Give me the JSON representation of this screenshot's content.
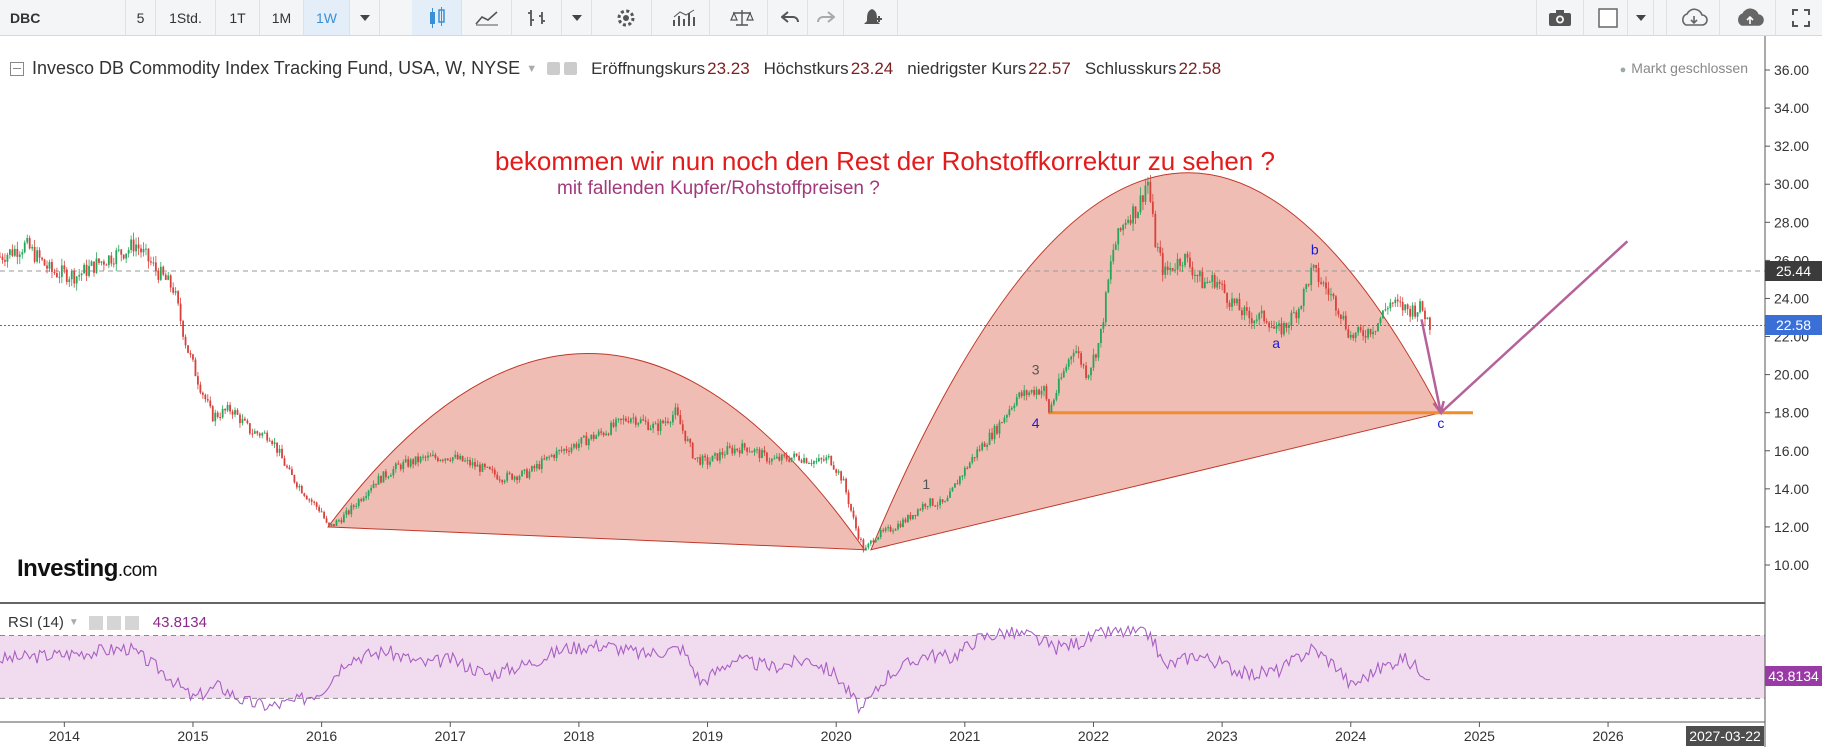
{
  "toolbar": {
    "symbol": "DBC",
    "intervals": [
      "5",
      "1Std.",
      "1T",
      "1M",
      "1W"
    ],
    "active_interval": "1W"
  },
  "legend": {
    "instrument": "Invesco DB Commodity Index Tracking Fund, USA, W, NYSE",
    "open_label": "Eröffnungskurs",
    "open": "23.23",
    "high_label": "Höchstkurs",
    "high": "23.24",
    "low_label": "niedrigster Kurs",
    "low": "22.57",
    "close_label": "Schlusskurs",
    "close": "22.58",
    "market_status": "Markt geschlossen"
  },
  "annotations": {
    "headline": "bekommen wir nun noch den Rest der Rohstoffkorrektur zu sehen ?",
    "subline": "mit fallenden Kupfer/Rohstoffpreisen ?",
    "wave_labels": [
      "1",
      "3",
      "4",
      "a",
      "b",
      "c"
    ]
  },
  "watermark": {
    "brand": "Investing",
    "suffix": ".com"
  },
  "rsi": {
    "label": "RSI (14)",
    "value": "43.8134",
    "badge": "43.8134"
  },
  "badges": {
    "resistance": "25.44",
    "last": "22.58",
    "date": "2027-03-22"
  },
  "colors": {
    "up": "#26a65b",
    "down": "#d9413c",
    "dome_fill": "#e89a8c",
    "support": "#f28c28",
    "arrow": "#b5629a",
    "rsi_line": "#a85fc4",
    "rsi_band": "#f1dcef"
  },
  "chart_data": {
    "type": "candlestick",
    "y_ticks": [
      "10.00",
      "12.00",
      "14.00",
      "16.00",
      "18.00",
      "20.00",
      "22.00",
      "24.00",
      "26.00",
      "28.00",
      "30.00",
      "32.00",
      "34.00",
      "36.00"
    ],
    "x_ticks": [
      "2014",
      "2015",
      "2016",
      "2017",
      "2018",
      "2019",
      "2020",
      "2021",
      "2022",
      "2023",
      "2024",
      "2025",
      "2026"
    ],
    "ylim": [
      9,
      37
    ],
    "xlim": [
      2013.5,
      2027.22
    ],
    "series": [
      {
        "name": "DBC",
        "points": [
          [
            2013.5,
            26.2
          ],
          [
            2013.7,
            26.8
          ],
          [
            2013.9,
            25.4
          ],
          [
            2014.1,
            25.2
          ],
          [
            2014.3,
            26.0
          ],
          [
            2014.5,
            26.6
          ],
          [
            2014.55,
            26.9
          ],
          [
            2014.7,
            25.6
          ],
          [
            2014.85,
            24.5
          ],
          [
            2014.95,
            21.5
          ],
          [
            2015.05,
            19.5
          ],
          [
            2015.15,
            17.8
          ],
          [
            2015.3,
            18.2
          ],
          [
            2015.45,
            17.0
          ],
          [
            2015.6,
            16.8
          ],
          [
            2015.75,
            14.8
          ],
          [
            2015.9,
            13.5
          ],
          [
            2016.0,
            12.8
          ],
          [
            2016.05,
            11.9
          ],
          [
            2016.2,
            12.7
          ],
          [
            2016.4,
            14.3
          ],
          [
            2016.6,
            15.2
          ],
          [
            2016.8,
            15.6
          ],
          [
            2017.0,
            15.7
          ],
          [
            2017.2,
            15.2
          ],
          [
            2017.4,
            14.6
          ],
          [
            2017.6,
            14.8
          ],
          [
            2017.8,
            15.8
          ],
          [
            2018.0,
            16.4
          ],
          [
            2018.2,
            17.0
          ],
          [
            2018.4,
            17.8
          ],
          [
            2018.6,
            17.2
          ],
          [
            2018.75,
            18.0
          ],
          [
            2018.9,
            15.6
          ],
          [
            2019.0,
            15.4
          ],
          [
            2019.15,
            16.0
          ],
          [
            2019.3,
            16.2
          ],
          [
            2019.5,
            15.5
          ],
          [
            2019.7,
            15.7
          ],
          [
            2019.85,
            15.4
          ],
          [
            2019.95,
            15.6
          ],
          [
            2020.05,
            14.5
          ],
          [
            2020.15,
            12.0
          ],
          [
            2020.22,
            10.7
          ],
          [
            2020.3,
            11.5
          ],
          [
            2020.4,
            11.8
          ],
          [
            2020.55,
            12.4
          ],
          [
            2020.7,
            13.3
          ],
          [
            2020.85,
            13.2
          ],
          [
            2020.95,
            14.5
          ],
          [
            2021.1,
            16.0
          ],
          [
            2021.25,
            17.2
          ],
          [
            2021.4,
            18.8
          ],
          [
            2021.55,
            19.2
          ],
          [
            2021.62,
            19.2
          ],
          [
            2021.65,
            18.0
          ],
          [
            2021.75,
            19.8
          ],
          [
            2021.85,
            21.5
          ],
          [
            2021.95,
            20.0
          ],
          [
            2022.05,
            21.8
          ],
          [
            2022.15,
            26.5
          ],
          [
            2022.25,
            28.2
          ],
          [
            2022.35,
            28.8
          ],
          [
            2022.42,
            30.3
          ],
          [
            2022.48,
            27.0
          ],
          [
            2022.55,
            25.3
          ],
          [
            2022.7,
            26.2
          ],
          [
            2022.85,
            24.8
          ],
          [
            2022.95,
            25.0
          ],
          [
            2023.05,
            24.0
          ],
          [
            2023.2,
            23.0
          ],
          [
            2023.35,
            23.0
          ],
          [
            2023.42,
            22.2
          ],
          [
            2023.5,
            22.6
          ],
          [
            2023.6,
            23.6
          ],
          [
            2023.7,
            25.5
          ],
          [
            2023.8,
            24.6
          ],
          [
            2023.9,
            23.6
          ],
          [
            2024.0,
            22.0
          ],
          [
            2024.1,
            22.2
          ],
          [
            2024.2,
            22.6
          ],
          [
            2024.3,
            23.8
          ],
          [
            2024.45,
            23.4
          ],
          [
            2024.55,
            23.5
          ],
          [
            2024.62,
            22.58
          ]
        ]
      }
    ],
    "levels": [
      25.44,
      22.58,
      18.0
    ],
    "projection": [
      [
        2024.55,
        22.9
      ],
      [
        2024.7,
        18.0
      ],
      [
        2026.15,
        27.0
      ]
    ],
    "domes": [
      {
        "start": [
          2016.05,
          12.0
        ],
        "end": [
          2020.22,
          10.8
        ],
        "peak": 21.1
      },
      {
        "start": [
          2020.27,
          10.8
        ],
        "end": [
          2024.7,
          18.0
        ],
        "peak": 30.4
      }
    ],
    "rsi": {
      "ylim": [
        15,
        90
      ],
      "bands": [
        70,
        30
      ],
      "values": [
        [
          2013.5,
          55
        ],
        [
          2014.0,
          58
        ],
        [
          2014.5,
          62
        ],
        [
          2014.8,
          45
        ],
        [
          2015.0,
          30
        ],
        [
          2015.2,
          38
        ],
        [
          2015.4,
          28
        ],
        [
          2015.6,
          25
        ],
        [
          2015.8,
          28
        ],
        [
          2016.0,
          35
        ],
        [
          2016.2,
          55
        ],
        [
          2016.5,
          60
        ],
        [
          2016.8,
          52
        ],
        [
          2017.0,
          55
        ],
        [
          2017.3,
          45
        ],
        [
          2017.6,
          52
        ],
        [
          2017.9,
          62
        ],
        [
          2018.2,
          64
        ],
        [
          2018.5,
          58
        ],
        [
          2018.8,
          62
        ],
        [
          2018.95,
          40
        ],
        [
          2019.2,
          55
        ],
        [
          2019.5,
          50
        ],
        [
          2019.8,
          55
        ],
        [
          2020.0,
          45
        ],
        [
          2020.2,
          22
        ],
        [
          2020.4,
          45
        ],
        [
          2020.7,
          58
        ],
        [
          2020.9,
          56
        ],
        [
          2021.1,
          68
        ],
        [
          2021.3,
          72
        ],
        [
          2021.5,
          70
        ],
        [
          2021.7,
          62
        ],
        [
          2021.9,
          66
        ],
        [
          2022.1,
          72
        ],
        [
          2022.3,
          72
        ],
        [
          2022.45,
          70
        ],
        [
          2022.55,
          50
        ],
        [
          2022.8,
          58
        ],
        [
          2023.0,
          52
        ],
        [
          2023.2,
          45
        ],
        [
          2023.45,
          48
        ],
        [
          2023.7,
          62
        ],
        [
          2023.9,
          50
        ],
        [
          2024.0,
          38
        ],
        [
          2024.2,
          48
        ],
        [
          2024.4,
          56
        ],
        [
          2024.62,
          44
        ]
      ]
    }
  }
}
